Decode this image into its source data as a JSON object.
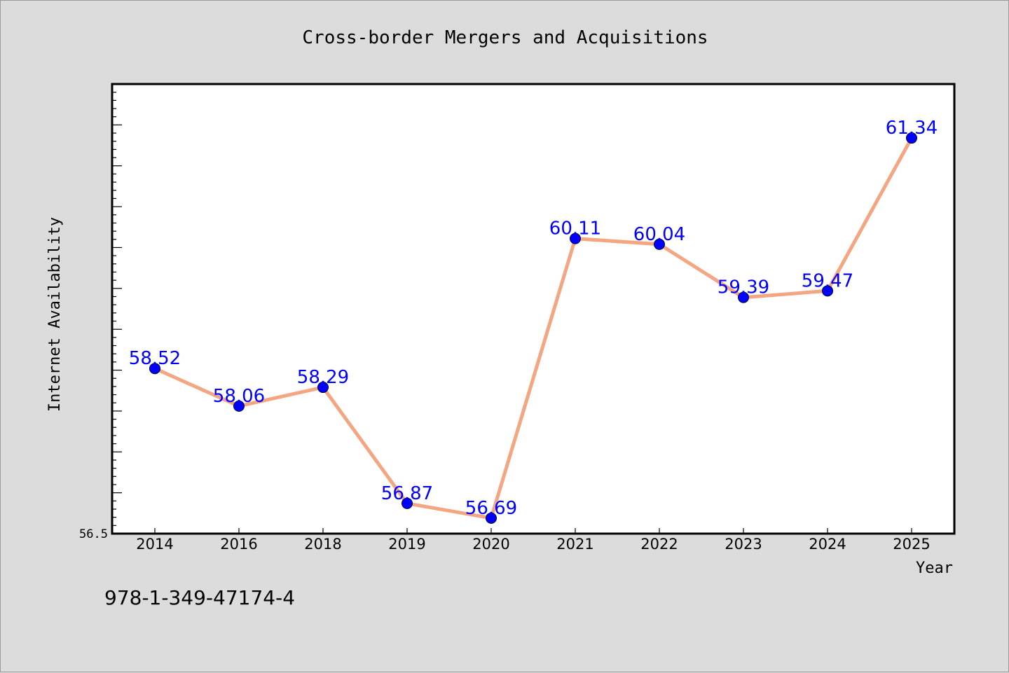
{
  "chart_data": {
    "type": "line",
    "title": "Cross-border Mergers and Acquisitions",
    "xlabel": "Year",
    "ylabel": "Internet Availability",
    "categories": [
      "2014",
      "2016",
      "2018",
      "2019",
      "2020",
      "2021",
      "2022",
      "2023",
      "2024",
      "2025"
    ],
    "series": [
      {
        "values": [
          58.52,
          58.06,
          58.29,
          56.87,
          56.69,
          60.11,
          60.04,
          59.39,
          59.47,
          61.34
        ],
        "labels": [
          "58.52",
          "58.06",
          "58.29",
          "56.87",
          "56.69",
          "60.11",
          "60.04",
          "59.39",
          "59.47",
          "61.34"
        ]
      }
    ],
    "ylim": [
      56.5,
      62.0
    ],
    "y_tick_labels": [
      "56.5"
    ],
    "grid": false,
    "colors": {
      "line": "#f4a582",
      "marker": "#0000ff",
      "data_label": "#0000ff",
      "background": "#dcdcdc",
      "plot_background": "#ffffff"
    }
  },
  "footer": {
    "isbn": "978-1-349-47174-4"
  }
}
